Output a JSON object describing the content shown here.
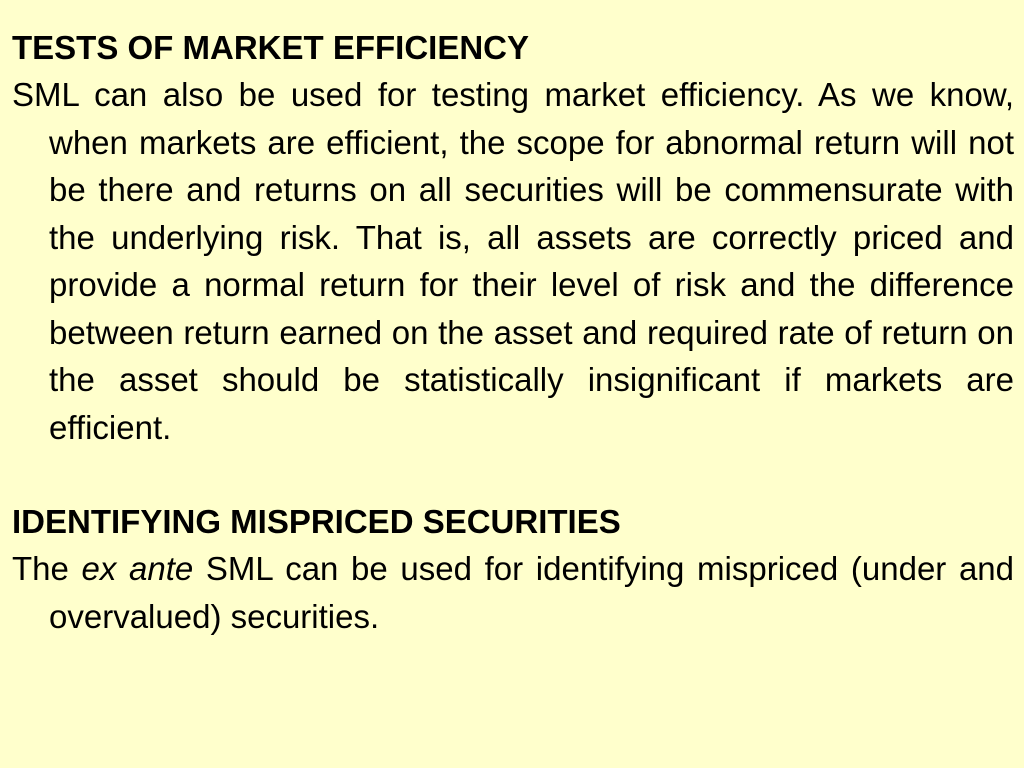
{
  "section1": {
    "heading": "TESTS OF MARKET EFFICIENCY",
    "body": "SML can also be used for testing market efficiency. As we know, when markets are efficient, the scope for abnormal return will not be there and returns on all securities will be commensurate with the underlying risk. That is, all assets are correctly priced and provide a normal return for their level of risk and the difference between return earned on the asset and required rate of return on the asset should be statistically insignificant if markets are efficient."
  },
  "section2": {
    "heading": "IDENTIFYING MISPRICED SECURITIES",
    "body_start": "The ",
    "body_italic": "ex ante",
    "body_end": " SML can be used for identifying mispriced (under and overvalued) securities."
  }
}
